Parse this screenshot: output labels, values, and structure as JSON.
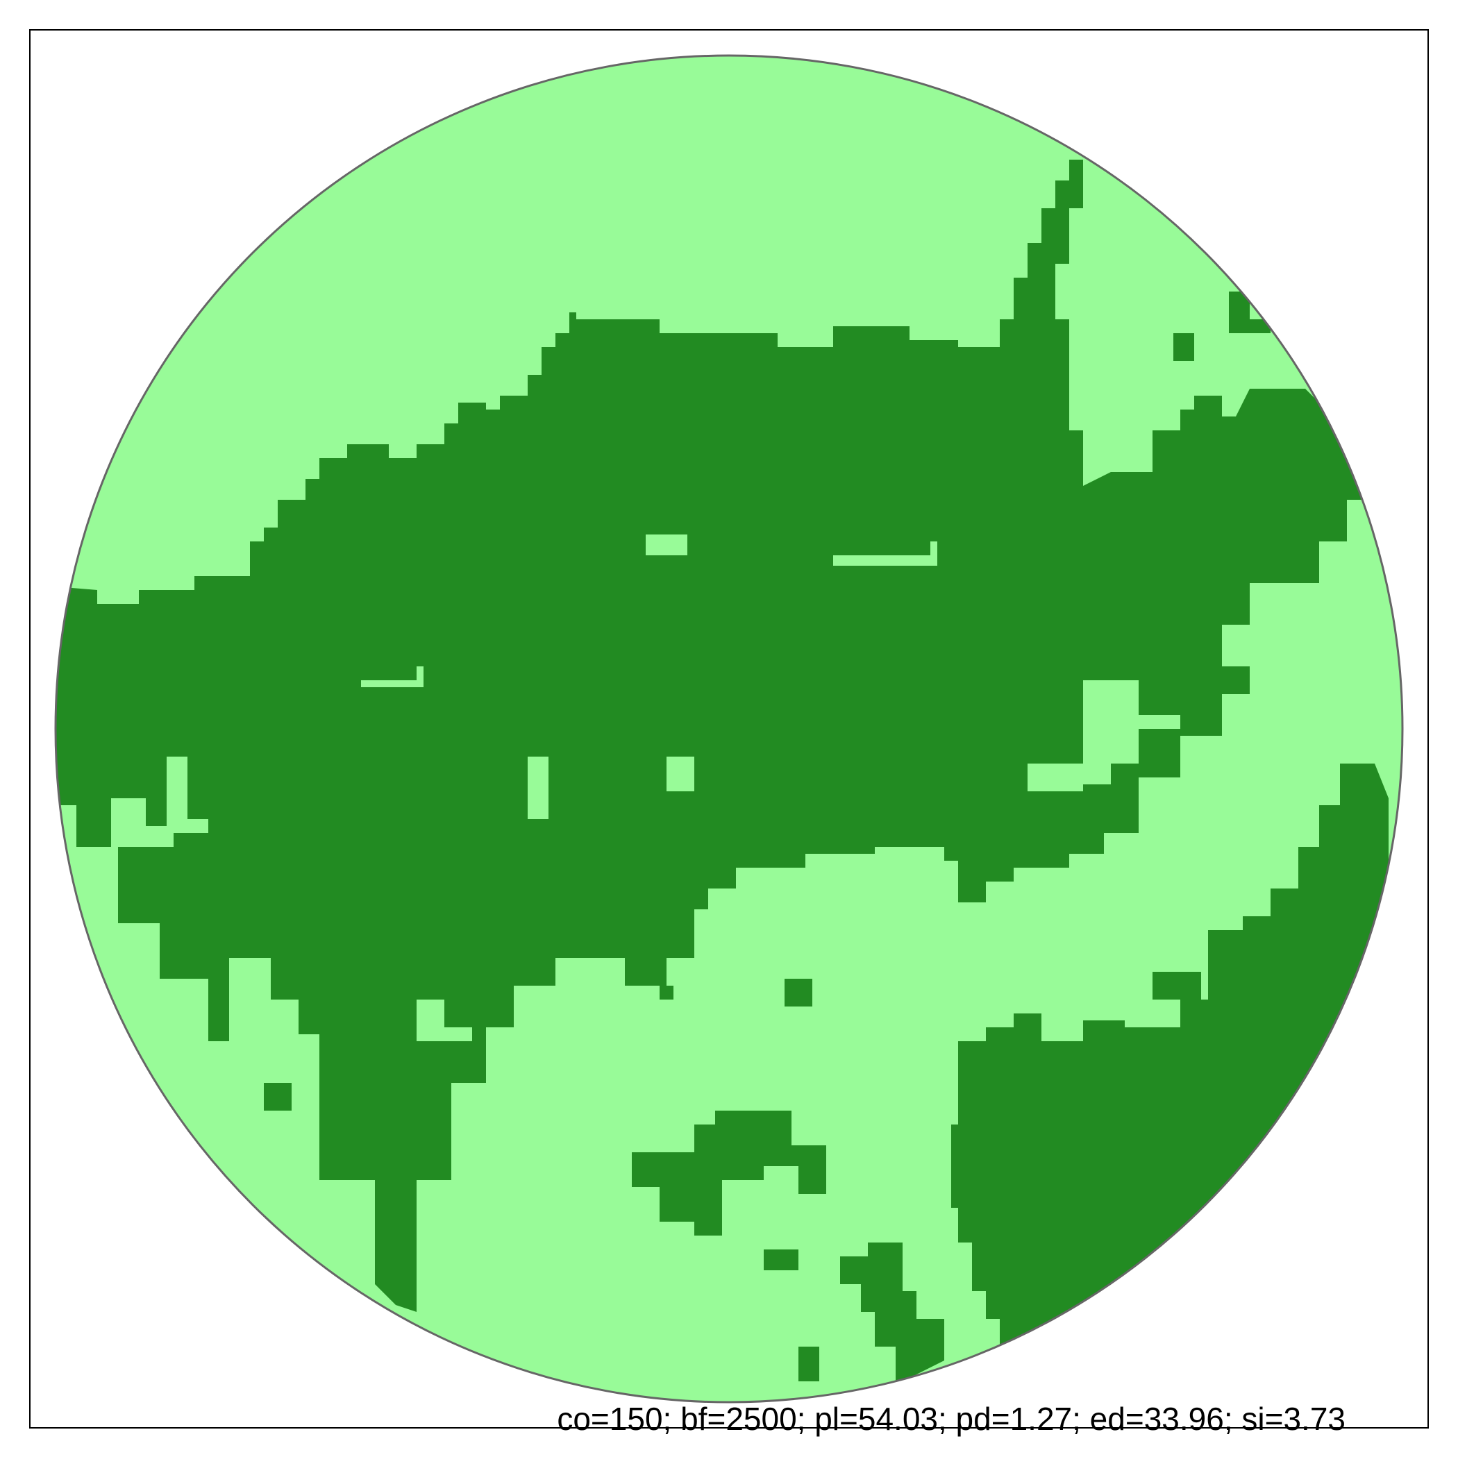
{
  "map": {
    "colors": {
      "background": "#ffffff",
      "class_light": "#98fb98",
      "class_dark": "#228b22",
      "circle_border": "#666666",
      "frame_border": "#000000"
    },
    "caption": "co=150; bf=2500; pl=54.03; pd=1.27; ed=33.96; si=3.73"
  }
}
